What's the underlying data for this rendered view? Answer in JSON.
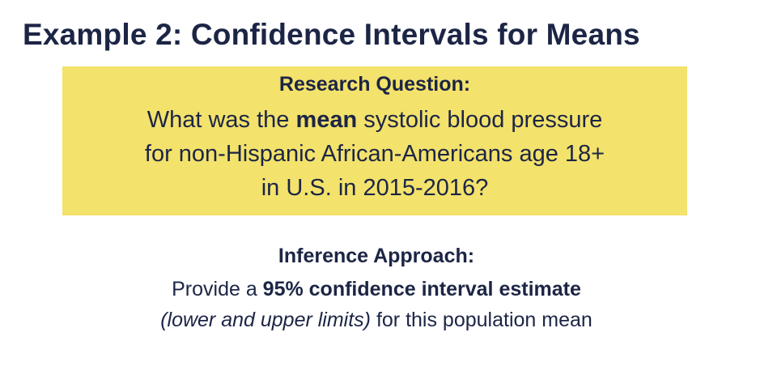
{
  "slide": {
    "title": "Example 2: Confidence Intervals for Means"
  },
  "research_question": {
    "heading": "Research Question:",
    "line1_prefix": "What was the ",
    "line1_bold": "mean",
    "line1_suffix": " systolic blood pressure",
    "line2": "for non-Hispanic African-Americans age 18+",
    "line3": "in U.S. in 2015-2016?",
    "background_color": "#f3e26c"
  },
  "inference": {
    "heading": "Inference Approach:",
    "line1_prefix": "Provide a ",
    "line1_bold": "95% confidence interval estimate",
    "line2_italic": "(lower and upper limits)",
    "line2_suffix": " for this population mean"
  },
  "colors": {
    "text": "#1c2545",
    "background": "#ffffff"
  }
}
